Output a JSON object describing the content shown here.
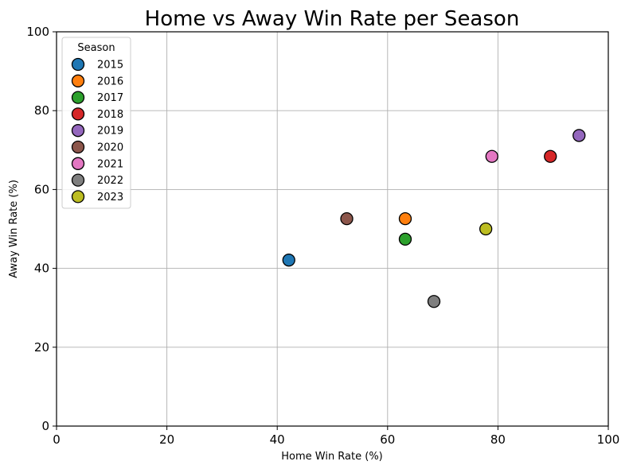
{
  "chart_data": {
    "type": "scatter",
    "title": "Home vs Away Win Rate per Season",
    "xlabel": "Home Win Rate (%)",
    "ylabel": "Away Win Rate (%)",
    "xlim": [
      0,
      100
    ],
    "ylim": [
      0,
      100
    ],
    "xticks": [
      0,
      20,
      40,
      60,
      80,
      100
    ],
    "yticks": [
      0,
      20,
      40,
      60,
      80,
      100
    ],
    "grid": true,
    "legend": {
      "title": "Season",
      "placement": "top-left"
    },
    "series": [
      {
        "name": "2015",
        "color": "#1f77b4",
        "points": [
          {
            "x": 42.1,
            "y": 42.1
          }
        ]
      },
      {
        "name": "2016",
        "color": "#ff7f0e",
        "points": [
          {
            "x": 63.2,
            "y": 52.6
          }
        ]
      },
      {
        "name": "2017",
        "color": "#2ca02c",
        "points": [
          {
            "x": 63.2,
            "y": 47.4
          }
        ]
      },
      {
        "name": "2018",
        "color": "#d62728",
        "points": [
          {
            "x": 89.5,
            "y": 68.4
          }
        ]
      },
      {
        "name": "2019",
        "color": "#9467bd",
        "points": [
          {
            "x": 94.7,
            "y": 73.7
          }
        ]
      },
      {
        "name": "2020",
        "color": "#8c564b",
        "points": [
          {
            "x": 52.6,
            "y": 52.6
          }
        ]
      },
      {
        "name": "2021",
        "color": "#e377c2",
        "points": [
          {
            "x": 78.9,
            "y": 68.4
          }
        ]
      },
      {
        "name": "2022",
        "color": "#7f7f7f",
        "points": [
          {
            "x": 68.4,
            "y": 31.6
          }
        ]
      },
      {
        "name": "2023",
        "color": "#bcbd22",
        "points": [
          {
            "x": 77.8,
            "y": 50.0
          }
        ]
      }
    ]
  }
}
